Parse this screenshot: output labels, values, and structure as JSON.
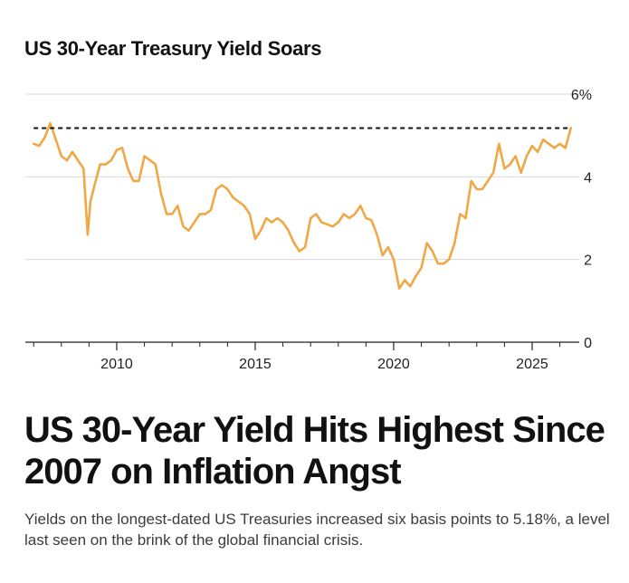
{
  "chart_title": "US 30-Year Treasury Yield Soars",
  "headline": "US 30-Year Yield Hits Highest Since 2007 on Inflation Angst",
  "subheadline": "Yields on the longest-dated US Treasuries increased six basis points to 5.18%, a level last seen on the brink of the global financial crisis.",
  "colors": {
    "series": "#f0a847",
    "reference_line": "#111111",
    "grid": "#d9d9d9",
    "axis": "#222222"
  },
  "chart_data": {
    "type": "line",
    "title": "US 30-Year Treasury Yield Soars",
    "xlabel": "",
    "ylabel": "",
    "xlim": [
      2006.7,
      2026.7
    ],
    "ylim": [
      0,
      6
    ],
    "x_ticks": [
      {
        "value": 2010,
        "label": "2010"
      },
      {
        "value": 2015,
        "label": "2015"
      },
      {
        "value": 2020,
        "label": "2020"
      },
      {
        "value": 2025,
        "label": "2025"
      }
    ],
    "y_ticks": [
      {
        "value": 0,
        "label": "0"
      },
      {
        "value": 2,
        "label": "2"
      },
      {
        "value": 4,
        "label": "4"
      },
      {
        "value": 6,
        "label": "6%"
      }
    ],
    "grid": "horizontal",
    "reference_line": {
      "y": 5.18,
      "style": "dashed"
    },
    "series": [
      {
        "x": [
          2007.0,
          2007.2,
          2007.4,
          2007.6,
          2007.8,
          2008.0,
          2008.2,
          2008.4,
          2008.6,
          2008.8,
          2008.95,
          2009.05,
          2009.2,
          2009.4,
          2009.6,
          2009.8,
          2010.0,
          2010.2,
          2010.4,
          2010.6,
          2010.8,
          2011.0,
          2011.2,
          2011.4,
          2011.6,
          2011.8,
          2012.0,
          2012.2,
          2012.4,
          2012.6,
          2012.8,
          2013.0,
          2013.2,
          2013.4,
          2013.6,
          2013.8,
          2014.0,
          2014.2,
          2014.4,
          2014.6,
          2014.8,
          2015.0,
          2015.2,
          2015.4,
          2015.6,
          2015.8,
          2016.0,
          2016.2,
          2016.4,
          2016.6,
          2016.8,
          2017.0,
          2017.2,
          2017.4,
          2017.6,
          2017.8,
          2018.0,
          2018.2,
          2018.4,
          2018.6,
          2018.8,
          2019.0,
          2019.2,
          2019.4,
          2019.6,
          2019.8,
          2020.0,
          2020.2,
          2020.4,
          2020.6,
          2020.8,
          2021.0,
          2021.2,
          2021.4,
          2021.6,
          2021.8,
          2022.0,
          2022.2,
          2022.4,
          2022.6,
          2022.8,
          2023.0,
          2023.2,
          2023.4,
          2023.6,
          2023.8,
          2024.0,
          2024.2,
          2024.4,
          2024.6,
          2024.8,
          2025.0,
          2025.2,
          2025.4,
          2025.6,
          2025.8,
          2026.0,
          2026.2,
          2026.4
        ],
        "y": [
          4.8,
          4.75,
          4.95,
          5.3,
          4.9,
          4.5,
          4.4,
          4.6,
          4.4,
          4.2,
          2.6,
          3.4,
          3.8,
          4.3,
          4.3,
          4.4,
          4.65,
          4.7,
          4.2,
          3.9,
          3.9,
          4.5,
          4.4,
          4.3,
          3.6,
          3.1,
          3.1,
          3.3,
          2.8,
          2.7,
          2.9,
          3.1,
          3.1,
          3.2,
          3.7,
          3.8,
          3.7,
          3.5,
          3.4,
          3.3,
          3.1,
          2.5,
          2.7,
          3.0,
          2.9,
          3.0,
          2.9,
          2.7,
          2.4,
          2.2,
          2.3,
          3.0,
          3.1,
          2.9,
          2.85,
          2.8,
          2.9,
          3.1,
          3.0,
          3.1,
          3.3,
          3.0,
          2.95,
          2.6,
          2.1,
          2.3,
          2.0,
          1.3,
          1.5,
          1.35,
          1.6,
          1.8,
          2.4,
          2.2,
          1.9,
          1.9,
          2.0,
          2.4,
          3.1,
          3.0,
          3.9,
          3.7,
          3.7,
          3.9,
          4.1,
          4.8,
          4.2,
          4.3,
          4.5,
          4.1,
          4.5,
          4.75,
          4.6,
          4.9,
          4.8,
          4.7,
          4.8,
          4.7,
          5.18
        ]
      }
    ]
  }
}
